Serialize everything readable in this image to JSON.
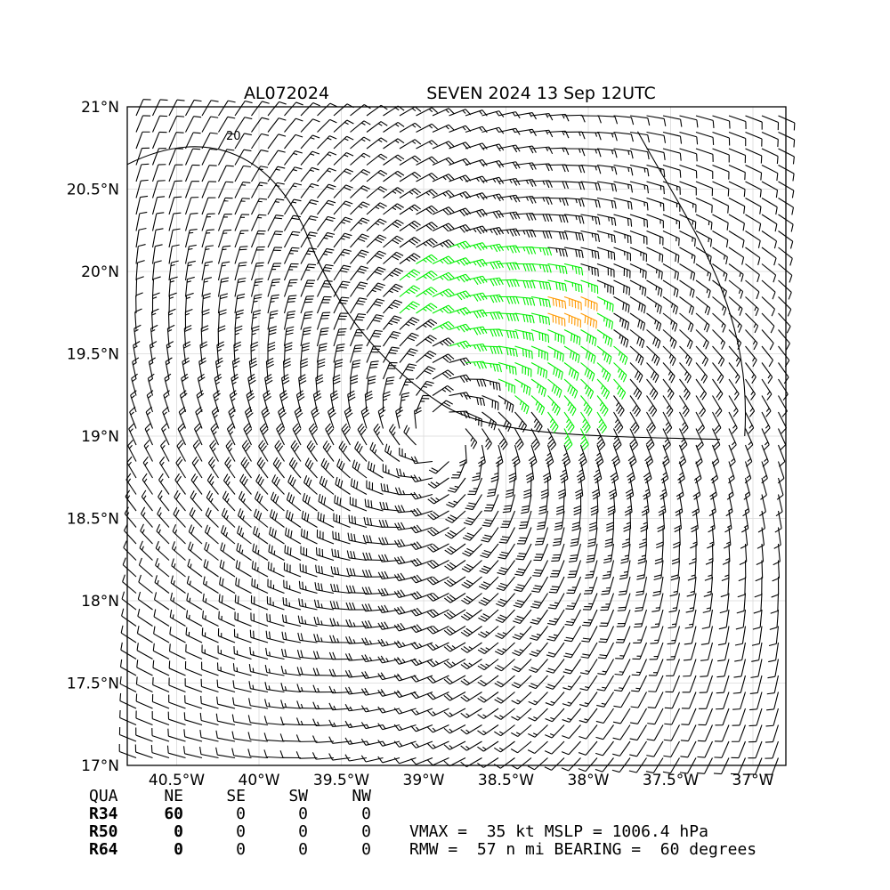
{
  "chart_data": {
    "type": "wind_barb_map",
    "title_left": "AL072024",
    "title_right": "SEVEN 2024 13 Sep 12UTC",
    "x_ticks": [
      "40.5°W",
      "40°W",
      "39.5°W",
      "39°W",
      "38.5°W",
      "38°W",
      "37.5°W",
      "37°W"
    ],
    "x_tick_values": [
      -40.5,
      -40.0,
      -39.5,
      -39.0,
      -38.5,
      -38.0,
      -37.5,
      -37.0
    ],
    "y_ticks": [
      "21°N",
      "20.5°N",
      "20°N",
      "19.5°N",
      "19°N",
      "18.5°N",
      "18°N",
      "17.5°N",
      "17°N"
    ],
    "y_tick_values": [
      21.0,
      20.5,
      20.0,
      19.5,
      19.0,
      18.5,
      18.0,
      17.5,
      17.0
    ],
    "xlim": [
      -40.8,
      -36.8
    ],
    "ylim": [
      17.0,
      21.0
    ],
    "grid": true,
    "storm_center": {
      "lon": -38.9,
      "lat": 19.0
    },
    "wind_colors": {
      "below_34kt": "#000000",
      "34_to_49kt": "#00ee00",
      "50_to_63kt": "#ff9900"
    },
    "contour_labels": [
      {
        "text": "20",
        "lon": -40.2,
        "lat": 20.8
      }
    ],
    "table": {
      "header": [
        "QUA",
        "NE",
        "SE",
        "SW",
        "NW"
      ],
      "rows": [
        {
          "label": "R34",
          "values": [
            "60",
            "0",
            "0",
            "0"
          ]
        },
        {
          "label": "R50",
          "values": [
            "0",
            "0",
            "0",
            "0"
          ]
        },
        {
          "label": "R64",
          "values": [
            "0",
            "0",
            "0",
            "0"
          ]
        }
      ]
    },
    "vmax_line": "VMAX =  35 kt MSLP = 1006.4 hPa",
    "rmw_line": "RMW =  57 n mi BEARING =  60 degrees",
    "vmax_kt": 35,
    "mslp_hpa": 1006.4,
    "rmw_nmi": 57,
    "bearing_deg": 60,
    "r34_nmi": {
      "NE": 60,
      "SE": 0,
      "SW": 0,
      "NW": 0
    },
    "r50_nmi": {
      "NE": 0,
      "SE": 0,
      "SW": 0,
      "NW": 0
    },
    "r64_nmi": {
      "NE": 0,
      "SE": 0,
      "SW": 0,
      "NW": 0
    }
  }
}
